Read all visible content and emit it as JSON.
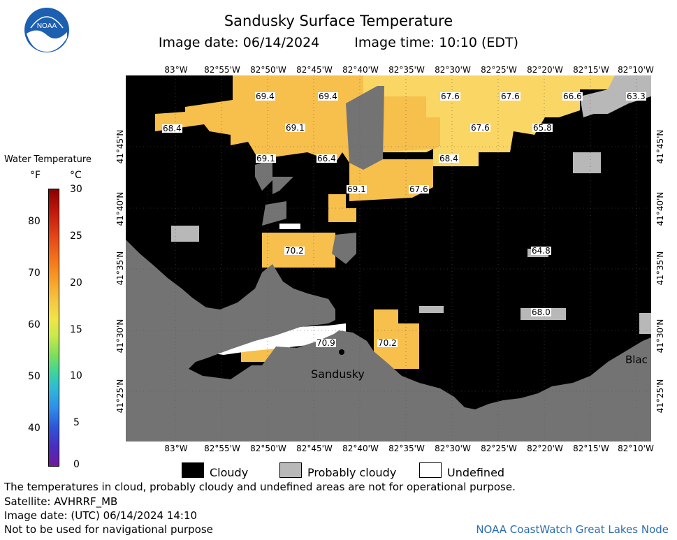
{
  "header": {
    "title": "Sandusky Surface Temperature",
    "image_date": "Image date: 06/14/2024",
    "image_time": "Image time: 10:10 (EDT)"
  },
  "logo": {
    "text": "NOAA",
    "icon": "noaa-logo-icon"
  },
  "colorbar": {
    "title": "Water Temperature",
    "unit_f": "°F",
    "unit_c": "°C",
    "f_ticks": [
      "80",
      "70",
      "60",
      "50",
      "40"
    ],
    "c_ticks": [
      "30",
      "25",
      "20",
      "15",
      "10",
      "5",
      "0"
    ]
  },
  "axes": {
    "longitudes": [
      "83°W",
      "82°55'W",
      "82°50'W",
      "82°45'W",
      "82°40'W",
      "82°35'W",
      "82°30'W",
      "82°25'W",
      "82°20'W",
      "82°15'W",
      "82°10'W"
    ],
    "latitudes": [
      "41°45'N",
      "41°40'N",
      "41°35'N",
      "41°30'N",
      "41°25'N"
    ]
  },
  "map_labels": {
    "temps": [
      "69.4",
      "69.4",
      "67.6",
      "67.6",
      "66.6",
      "63.3",
      "68.4",
      "69.1",
      "67.6",
      "65.8",
      "69.1",
      "66.4",
      "68.4",
      "69.1",
      "67.6",
      "70.2",
      "64.8",
      "68.0",
      "70.9",
      "70.2"
    ],
    "places": [
      "Sandusky",
      "Blac"
    ]
  },
  "legend": {
    "cloudy": "Cloudy",
    "probably_cloudy": "Probably cloudy",
    "undefined": "Undefined"
  },
  "notes": {
    "disclaimer": "The temperatures in cloud, probably cloudy and undefined areas are not for operational purpose.",
    "satellite": "Satellite: AVHRRF_MB",
    "utc_date": "Image date: (UTC) 06/14/2024  14:10",
    "nav": "Not to be used for navigational purpose",
    "credit": "NOAA CoastWatch Great Lakes Node"
  },
  "colors": {
    "cloudy": "#000000",
    "probably_cloudy": "#b8b8b8",
    "land": "#737373",
    "warm_water": "#f7bf4c",
    "cool_water": "#fad664"
  }
}
